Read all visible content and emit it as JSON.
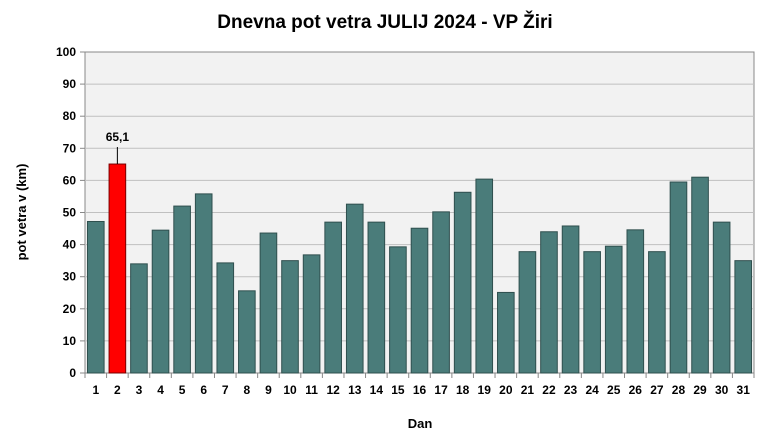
{
  "chart_data": {
    "type": "bar",
    "title": "Dnevna pot vetra JULIJ 2024 - VP Žiri",
    "xlabel": "Dan",
    "ylabel": "pot vetra  v (km)",
    "ylim": [
      0,
      100
    ],
    "yticks": [
      0,
      10,
      20,
      30,
      40,
      50,
      60,
      70,
      80,
      90,
      100
    ],
    "grid": true,
    "categories": [
      "1",
      "2",
      "3",
      "4",
      "5",
      "6",
      "7",
      "8",
      "9",
      "10",
      "11",
      "12",
      "13",
      "14",
      "15",
      "16",
      "17",
      "18",
      "19",
      "20",
      "21",
      "22",
      "23",
      "24",
      "25",
      "26",
      "27",
      "28",
      "29",
      "30",
      "31"
    ],
    "values": [
      47.2,
      65.1,
      34.0,
      44.5,
      52.0,
      55.8,
      34.3,
      25.6,
      43.6,
      35.0,
      36.8,
      47.0,
      52.6,
      47.0,
      39.3,
      45.1,
      50.2,
      56.3,
      60.4,
      25.1,
      37.8,
      44.0,
      45.8,
      37.8,
      39.5,
      44.6,
      37.8,
      59.5,
      61.0,
      47.0,
      35.0
    ],
    "bar_color": "#4A7C7A",
    "highlight": {
      "index": 1,
      "color": "#FF0000",
      "label": "65,1"
    },
    "plot_background": "#F2F2F2",
    "grid_color": "#C0C0C0"
  }
}
